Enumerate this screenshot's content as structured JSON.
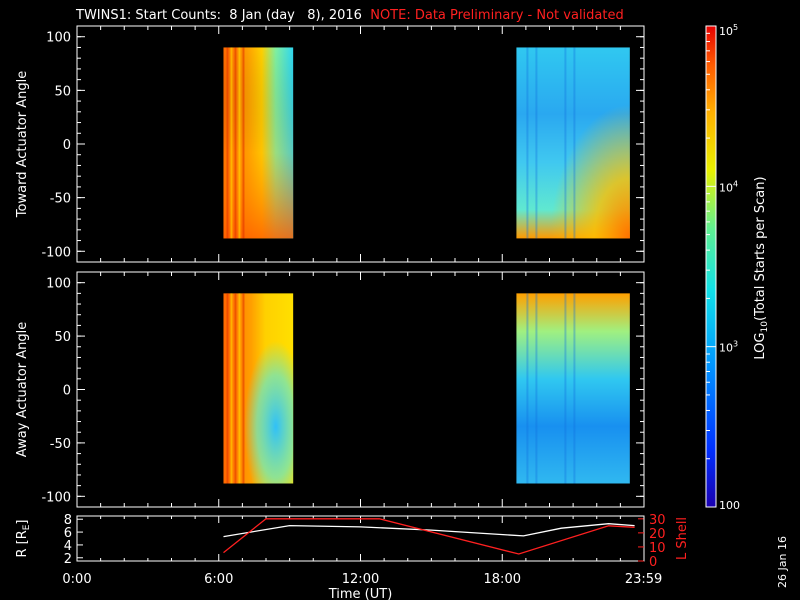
{
  "title": {
    "main": "TWINS1: Start Counts:  8 Jan (day   8), 2016",
    "note": "NOTE: Data Preliminary - Not validated"
  },
  "date_stamp": "26 Jan 16",
  "colorbar": {
    "label": "LOG10(Total Starts per Scan)",
    "ticks": [
      "10^5",
      "10^4",
      "10^3",
      "100"
    ],
    "range": [
      100,
      100000
    ],
    "scale": "log"
  },
  "chart_data": [
    {
      "type": "heatmap",
      "ylabel": "Toward Actuator Angle",
      "ylim": [
        -110,
        110
      ],
      "yticks": [
        -100,
        -50,
        0,
        50,
        100
      ],
      "xlim": [
        0,
        24
      ],
      "blocks": [
        {
          "start": 6.2,
          "end": 9.15,
          "ymin": -88,
          "ymax": 90,
          "dominant": "high counts (orange-red)"
        },
        {
          "start": 18.6,
          "end": 23.4,
          "ymin": -88,
          "ymax": 90,
          "dominant": "mid counts (cyan)"
        }
      ]
    },
    {
      "type": "heatmap",
      "ylabel": "Away Actuator Angle",
      "ylim": [
        -110,
        110
      ],
      "yticks": [
        -100,
        -50,
        0,
        50,
        100
      ],
      "xlim": [
        0,
        24
      ],
      "blocks": [
        {
          "start": 6.2,
          "end": 9.15,
          "ymin": -88,
          "ymax": 90,
          "dominant": "high counts (orange-red)"
        },
        {
          "start": 18.6,
          "end": 23.4,
          "ymin": -88,
          "ymax": 90,
          "dominant": "mid counts (cyan)"
        }
      ]
    },
    {
      "type": "line",
      "xlabel": "Time (UT)",
      "x_ticks": [
        "0:00",
        "6:00",
        "12:00",
        "18:00",
        "23:59"
      ],
      "x_tick_hours": [
        0,
        6,
        12,
        18,
        23.983
      ],
      "left_axis": {
        "label": "R [RE]",
        "ticks": [
          2,
          4,
          6,
          8
        ],
        "range": [
          1.5,
          8.5
        ]
      },
      "right_axis": {
        "label": "L Shell",
        "ticks": [
          0,
          10,
          20,
          30
        ],
        "range": [
          0,
          32
        ]
      },
      "series": [
        {
          "name": "R [RE]",
          "axis": "left",
          "color": "#ffffff",
          "x": [
            6.2,
            9.0,
            12.0,
            15.0,
            18.9,
            20.5,
            22.5,
            23.6
          ],
          "y": [
            5.3,
            7.0,
            6.8,
            6.3,
            5.4,
            6.6,
            7.3,
            7.0
          ]
        },
        {
          "name": "L Shell",
          "axis": "right",
          "color": "#ff2020",
          "x": [
            6.2,
            8.0,
            12.8,
            18.7,
            22.5,
            23.6
          ],
          "y": [
            6,
            30,
            30,
            5,
            25,
            24
          ]
        }
      ]
    }
  ]
}
